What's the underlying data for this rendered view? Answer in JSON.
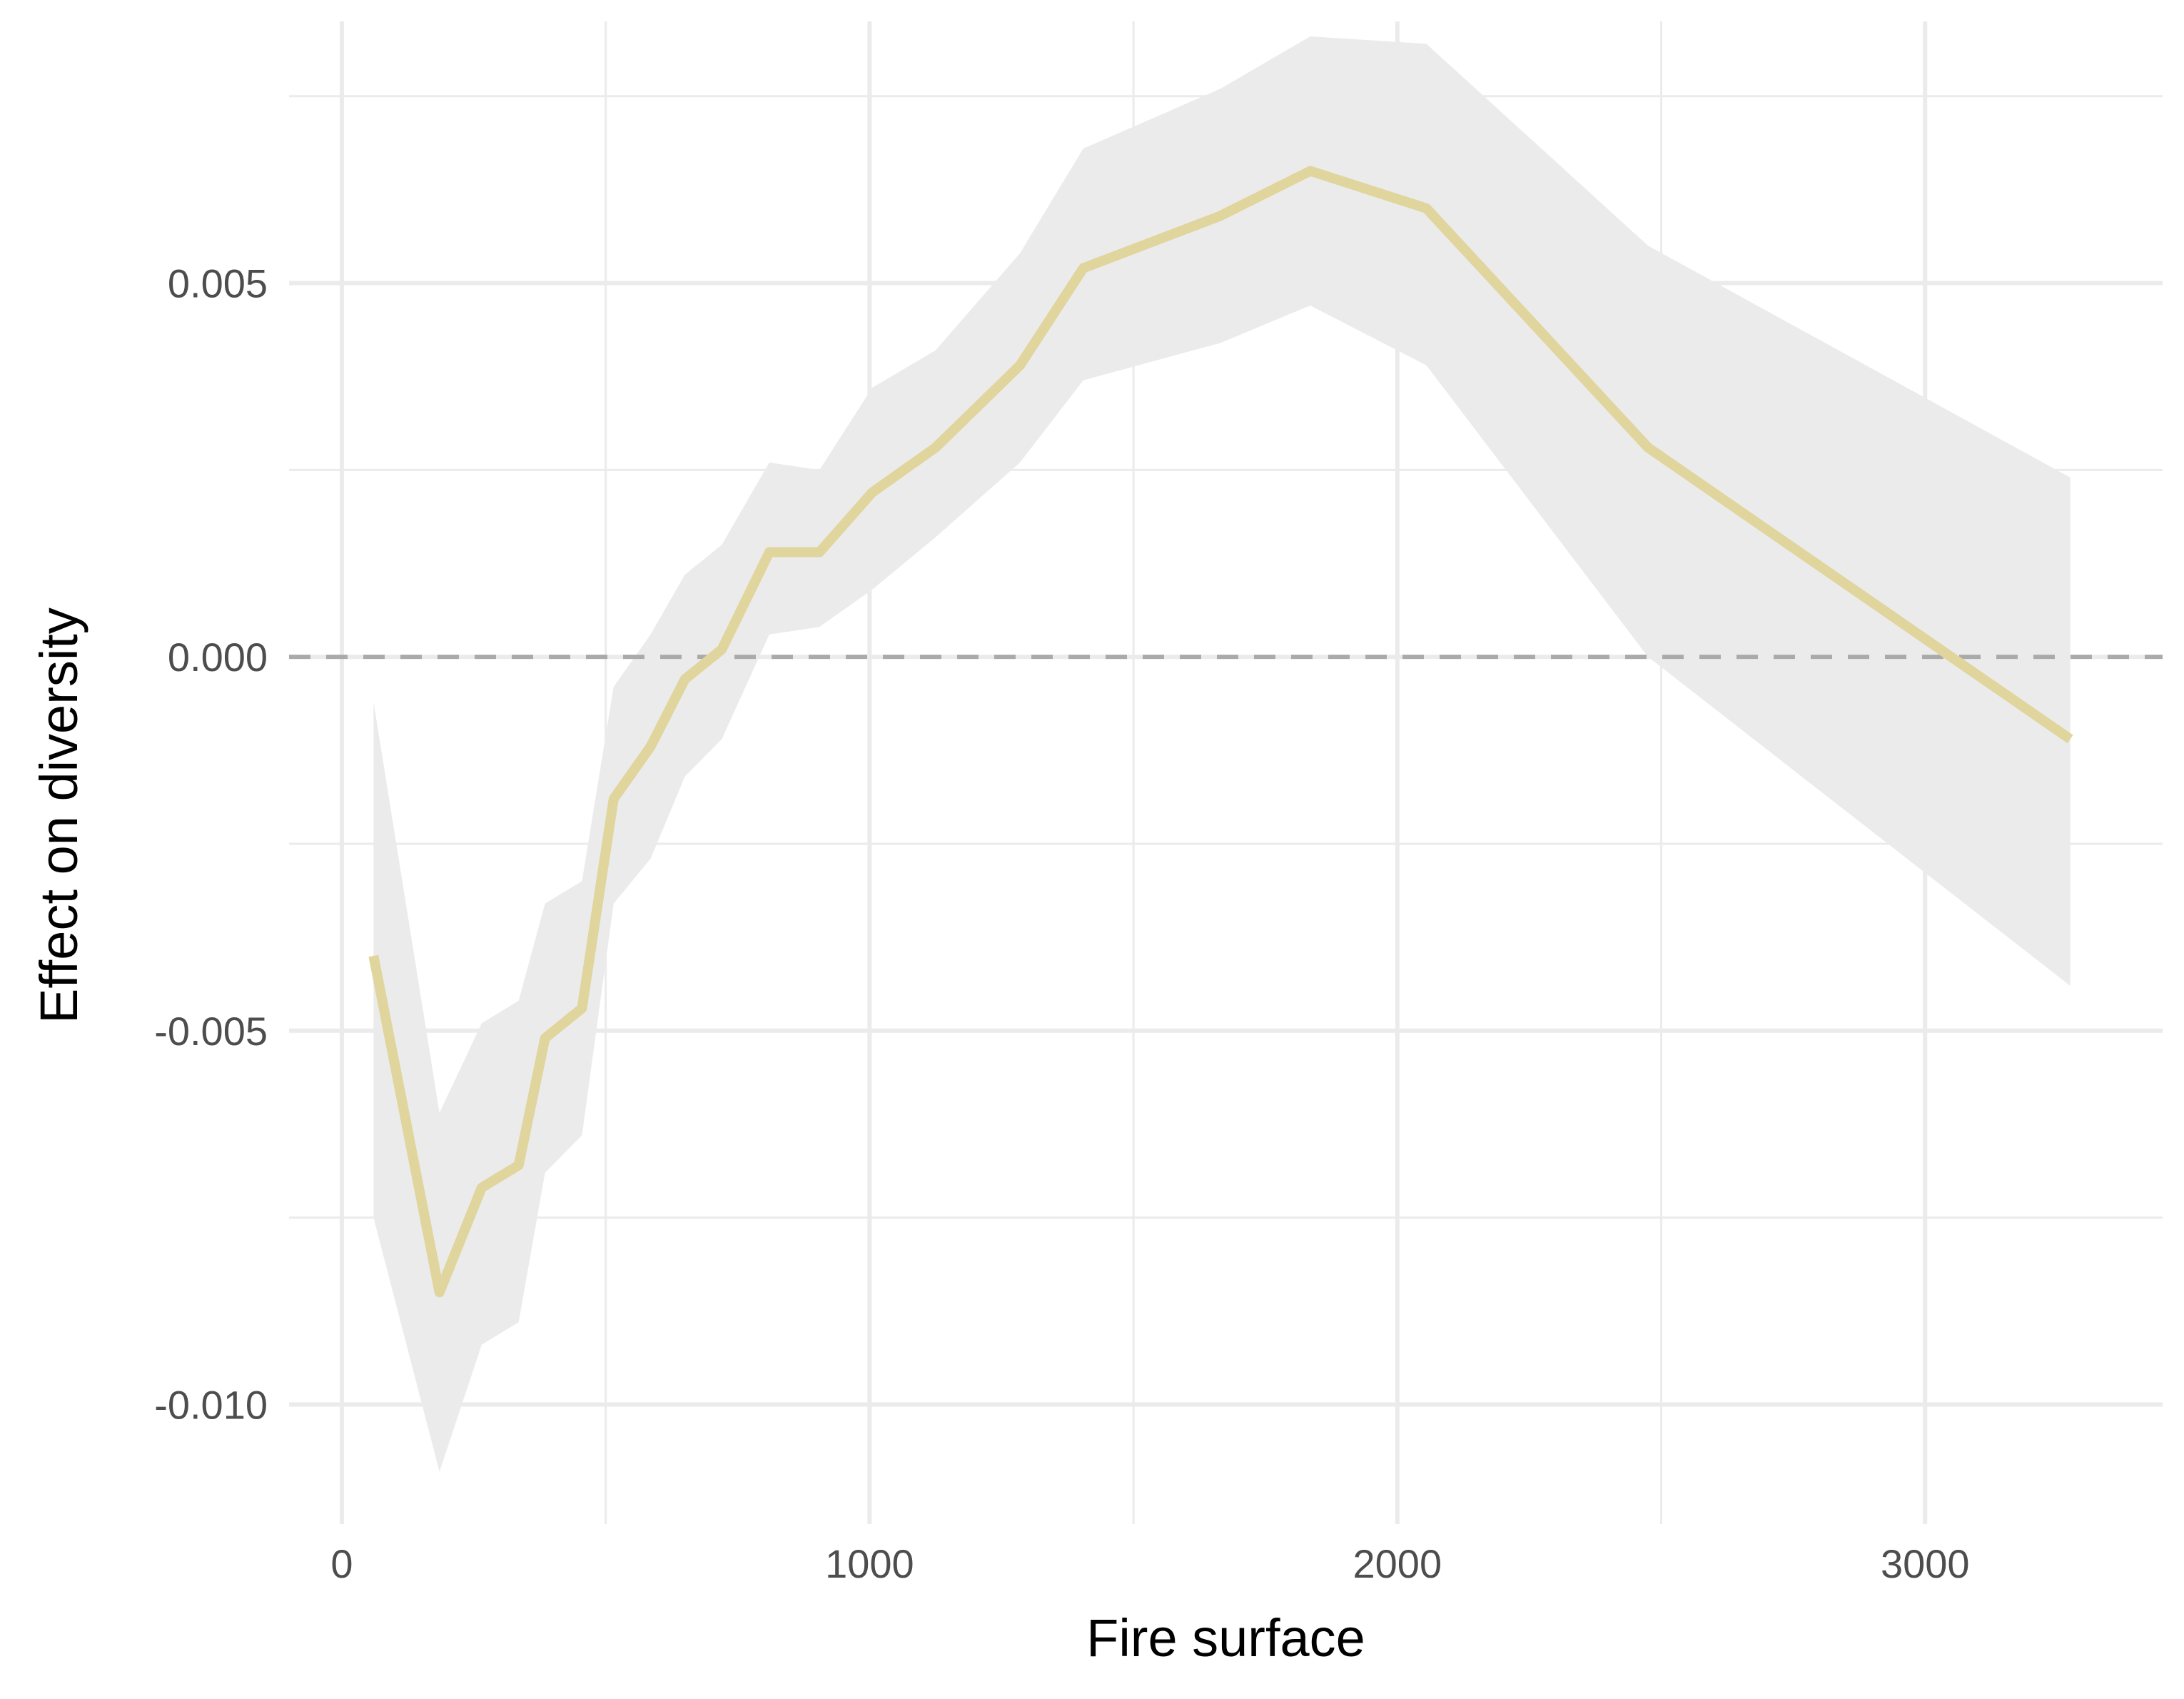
{
  "chart_data": {
    "type": "line",
    "title": "",
    "xlabel": "Fire surface",
    "ylabel": "Effect on diversity",
    "xlim": [
      -100,
      3450
    ],
    "ylim": [
      -0.0116,
      0.0085
    ],
    "x_ticks": [
      0,
      1000,
      2000,
      3000
    ],
    "x_tick_labels": [
      "0",
      "1000",
      "2000",
      "3000"
    ],
    "y_ticks": [
      -0.01,
      -0.005,
      0.0,
      0.005
    ],
    "y_tick_labels": [
      "-0.010",
      "-0.005",
      "0.000",
      "0.005"
    ],
    "grid": true,
    "reference_line": {
      "y": 0.0,
      "style": "dashed",
      "color": "#aaaaaa"
    },
    "colors": {
      "line": "#e0d59c",
      "ribbon": "#ebebeb",
      "grid": "#ebebeb",
      "tick_text": "#4d4d4d",
      "title_text": "#000000"
    },
    "series": [
      {
        "x": [
          60,
          185,
          265,
          335,
          385,
          455,
          515,
          585,
          650,
          720,
          810,
          905,
          1005,
          1125,
          1285,
          1405,
          1665,
          1835,
          2055,
          2475,
          3275
        ],
        "y": [
          -0.004,
          -0.0085,
          -0.0071,
          -0.0068,
          -0.0051,
          -0.0047,
          -0.0019,
          -0.0012,
          -0.0003,
          0.0001,
          0.0014,
          0.0014,
          0.0022,
          0.0028,
          0.0039,
          0.0052,
          0.0059,
          0.0065,
          0.006,
          0.0028,
          -0.0011
        ],
        "lower": [
          -0.0075,
          -0.0109,
          -0.0092,
          -0.0089,
          -0.0069,
          -0.0064,
          -0.0033,
          -0.0027,
          -0.0016,
          -0.0011,
          0.0003,
          0.0004,
          0.0009,
          0.0016,
          0.0026,
          0.0037,
          0.0042,
          0.0047,
          0.0039,
          0.0,
          -0.0044
        ],
        "upper": [
          -0.0006,
          -0.0061,
          -0.0049,
          -0.0046,
          -0.0033,
          -0.003,
          -0.0004,
          0.0003,
          0.0011,
          0.0015,
          0.0026,
          0.0025,
          0.0036,
          0.0041,
          0.0054,
          0.0068,
          0.0076,
          0.0083,
          0.0082,
          0.0055,
          0.0024
        ]
      }
    ]
  }
}
